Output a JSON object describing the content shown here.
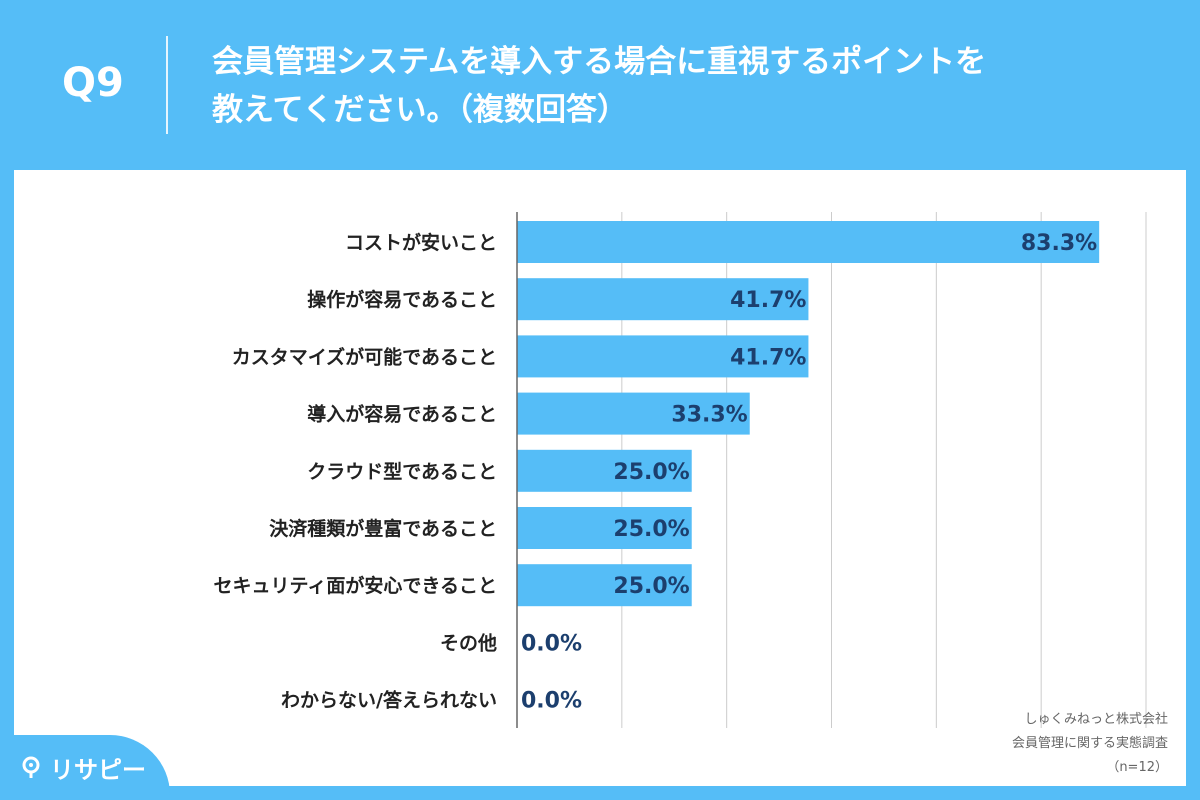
{
  "header": {
    "q_label": "Q9",
    "title_line1": "会員管理システムを導入する場合に重視するポイントを",
    "title_line2": "教えてください。（複数回答）"
  },
  "source": {
    "line1": "しゅくみねっと株式会社",
    "line2": "会員管理に関する実態調査",
    "line3": "（n=12）"
  },
  "logo": {
    "text": "リサピー"
  },
  "colors": {
    "background": "#55bdf7",
    "bar": "#55bdf7",
    "value_text": "#1c3f6e",
    "panel": "#ffffff"
  },
  "chart_data": {
    "type": "bar",
    "orientation": "horizontal",
    "categories": [
      "コストが安いこと",
      "操作が容易であること",
      "カスタマイズが可能であること",
      "導入が容易であること",
      "クラウド型であること",
      "決済種類が豊富であること",
      "セキュリティ面が安心できること",
      "その他",
      "わからない/答えられない"
    ],
    "values": [
      83.3,
      41.7,
      41.7,
      33.3,
      25.0,
      25.0,
      25.0,
      0.0,
      0.0
    ],
    "value_labels": [
      "83.3%",
      "41.7%",
      "41.7%",
      "33.3%",
      "25.0%",
      "25.0%",
      "25.0%",
      "0.0%",
      "0.0%"
    ],
    "xlim": [
      0,
      90
    ],
    "grid": true
  }
}
